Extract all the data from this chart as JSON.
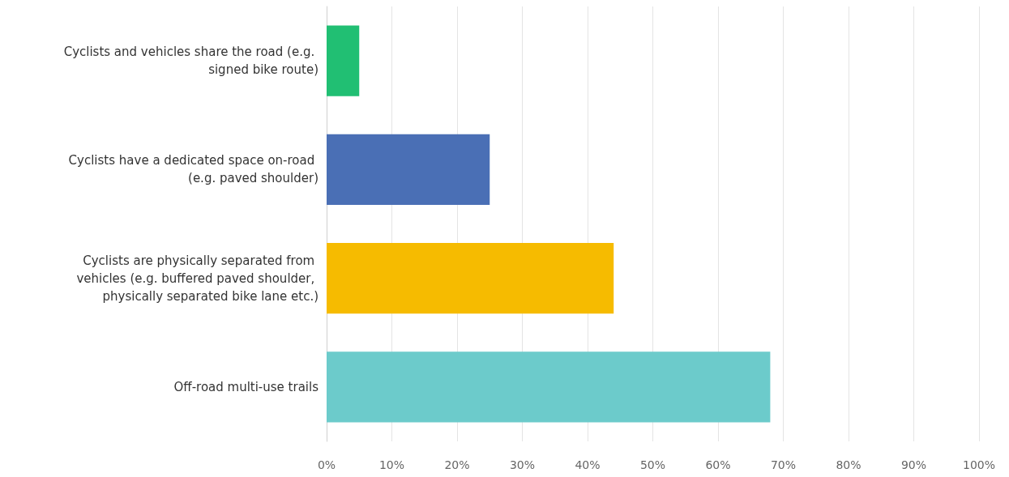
{
  "chart_data": {
    "type": "bar",
    "orientation": "horizontal",
    "categories": [
      "Cyclists and vehicles share the road (e.g. signed bike route)",
      "Cyclists have a dedicated space on-road (e.g. paved shoulder)",
      "Cyclists are physically separated from vehicles (e.g. buffered paved shoulder, physically separated bike lane etc.)",
      "Off-road multi-use trails"
    ],
    "values": [
      5,
      25,
      44,
      68
    ],
    "colors": [
      "#21bf73",
      "#4a6fb5",
      "#f6bb00",
      "#6ccbcb"
    ],
    "xlim": [
      0,
      100
    ],
    "xticks": [
      {
        "value": 0,
        "label": "0%"
      },
      {
        "value": 10,
        "label": "10%"
      },
      {
        "value": 20,
        "label": "20%"
      },
      {
        "value": 30,
        "label": "30%"
      },
      {
        "value": 40,
        "label": "40%"
      },
      {
        "value": 50,
        "label": "50%"
      },
      {
        "value": 60,
        "label": "60%"
      },
      {
        "value": 70,
        "label": "70%"
      },
      {
        "value": 80,
        "label": "80%"
      },
      {
        "value": 90,
        "label": "90%"
      },
      {
        "value": 100,
        "label": "100%"
      }
    ],
    "grid": "x"
  }
}
